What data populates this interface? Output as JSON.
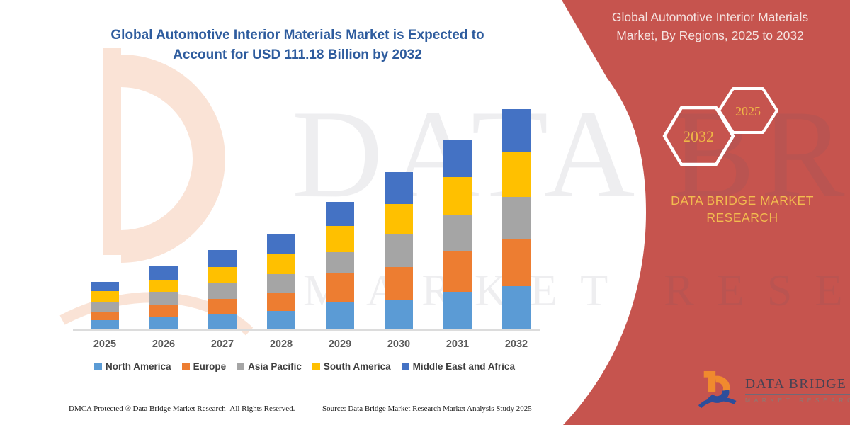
{
  "left_panel": {
    "title_line1": "Global Automotive Interior Materials Market is Expected to",
    "title_line2": "Account for USD 111.18 Billion by 2032",
    "footer_dmca": "DMCA Protected ® Data Bridge Market Research-  All Rights Reserved.",
    "footer_source": "Source: Data Bridge Market Research  Market Analysis Study 2025"
  },
  "right_panel": {
    "title_line1": "Global Automotive Interior Materials",
    "title_line2": "Market, By Regions, 2025 to 2032",
    "hexagon_back_label": "2032",
    "hexagon_front_label": "2025",
    "brand_line1": "DATA BRIDGE MARKET",
    "brand_line2": "RESEARCH",
    "background_color": "#C6544E",
    "accent_gold": "#EFB646"
  },
  "logo": {
    "name_text": "DATA BRIDGE",
    "subtitle_text": "MARKET RESEARCH"
  },
  "watermark": {
    "line1": "DATA BRIDGE",
    "line2": "MARKET RESEARCH"
  },
  "chart_data": {
    "type": "bar",
    "stacked": true,
    "title": "Global Automotive Interior Materials Market is Expected to Account for USD 111.18 Billion by 2032",
    "unit": "USD Billion",
    "categories": [
      "2025",
      "2026",
      "2027",
      "2028",
      "2029",
      "2030",
      "2031",
      "2032"
    ],
    "series": [
      {
        "name": "North America",
        "color": "#5B9BD5",
        "values": [
          4.8,
          6.6,
          8.0,
          9.4,
          14.0,
          14.9,
          19.1,
          21.9
        ]
      },
      {
        "name": "Europe",
        "color": "#ED7D31",
        "values": [
          4.2,
          6.0,
          7.5,
          9.0,
          14.1,
          16.7,
          20.1,
          23.9
        ]
      },
      {
        "name": "Asia Pacific",
        "color": "#A5A5A5",
        "values": [
          4.8,
          6.2,
          8.0,
          9.6,
          11.0,
          16.1,
          18.4,
          20.9
        ]
      },
      {
        "name": "South America",
        "color": "#FFC000",
        "values": [
          5.4,
          6.0,
          7.9,
          10.1,
          12.9,
          15.5,
          19.1,
          22.7
        ]
      },
      {
        "name": "Middle East and Africa",
        "color": "#4472C4",
        "values": [
          4.8,
          6.9,
          8.6,
          9.9,
          12.2,
          16.1,
          19.1,
          21.8
        ]
      }
    ],
    "totals_estimated": [
      24.0,
      31.7,
      39.9,
      48.0,
      64.2,
      79.3,
      95.8,
      111.18
    ],
    "ylim": [
      0,
      120
    ],
    "grid": false,
    "legend_position": "bottom",
    "xlabel": "",
    "ylabel": ""
  }
}
